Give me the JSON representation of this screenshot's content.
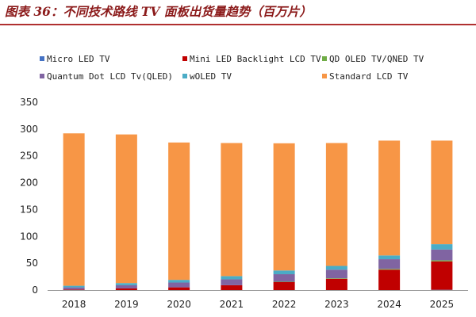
{
  "page": {
    "title": "图表 36：不同技术路线 TV 面板出货量趋势（百万片）"
  },
  "colors": {
    "micro_led": "#4472c4",
    "mini_led": "#c00000",
    "qd_oled": "#70ad47",
    "qled": "#8064a2",
    "woled": "#4bacc6",
    "standard_lcd": "#f79646",
    "axis": "#999999",
    "text": "#222222"
  },
  "chart_data": {
    "type": "bar",
    "stacked": true,
    "title": "图表 36：不同技术路线 TV 面板出货量趋势（百万片）",
    "xlabel": "",
    "ylabel": "",
    "ylim": [
      0,
      350
    ],
    "yticks": [
      0,
      50,
      100,
      150,
      200,
      250,
      300,
      350
    ],
    "grid": false,
    "legend_position": "top",
    "categories": [
      "2018",
      "2019",
      "2020",
      "2021",
      "2022",
      "2023",
      "2024",
      "2025"
    ],
    "series": [
      {
        "name": "Micro LED TV",
        "color": "#4472c4",
        "values": [
          0,
          0,
          0,
          0,
          0,
          0,
          0,
          0.5
        ]
      },
      {
        "name": "Mini LED Backlight LCD TV",
        "color": "#c00000",
        "values": [
          1,
          3,
          5,
          9,
          15,
          21,
          38,
          53
        ]
      },
      {
        "name": "QD OLED TV/QNED TV",
        "color": "#70ad47",
        "values": [
          0,
          0,
          0,
          0,
          0.5,
          1,
          1.5,
          2
        ]
      },
      {
        "name": "Quantum Dot LCD Tv(QLED)",
        "color": "#8064a2",
        "values": [
          4,
          6,
          9,
          11,
          14,
          16,
          18,
          20
        ]
      },
      {
        "name": "wOLED TV",
        "color": "#4bacc6",
        "values": [
          3,
          4,
          5,
          6,
          7,
          7,
          7,
          10
        ]
      },
      {
        "name": "Standard LCD TV",
        "color": "#f79646",
        "values": [
          284,
          277,
          256,
          248,
          237,
          229,
          214,
          193
        ]
      }
    ]
  }
}
